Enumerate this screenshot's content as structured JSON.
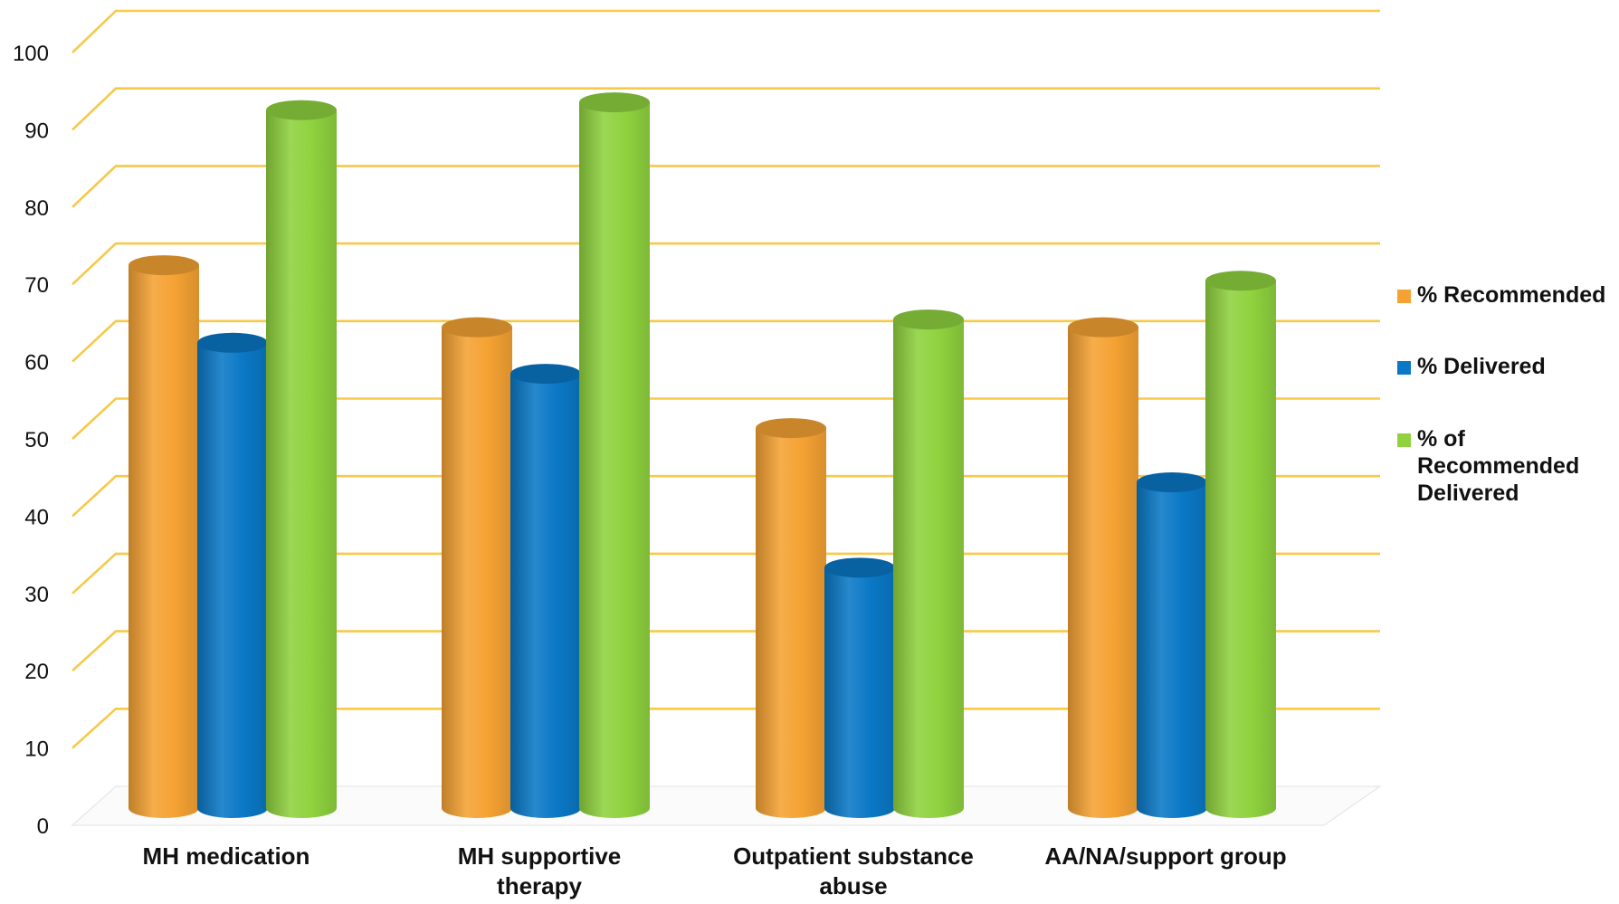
{
  "chart_data": {
    "type": "bar",
    "title": "",
    "xlabel": "",
    "ylabel": "",
    "ylim": [
      0,
      100
    ],
    "yticks": [
      0,
      10,
      20,
      30,
      40,
      50,
      60,
      70,
      80,
      90,
      100
    ],
    "grid": true,
    "legend_position": "right",
    "categories": [
      [
        "MH medication"
      ],
      [
        "MH supportive",
        "therapy"
      ],
      [
        "Outpatient substance",
        "abuse"
      ],
      [
        "AA/NA/support group"
      ]
    ],
    "series": [
      {
        "name": "% Recommended",
        "legend_lines": [
          "% Recommended"
        ],
        "color": "#f5a233",
        "values": [
          70,
          62,
          49,
          62
        ]
      },
      {
        "name": "% Delivered",
        "legend_lines": [
          "% Delivered"
        ],
        "color": "#0a78c6",
        "values": [
          60,
          56,
          31,
          42
        ]
      },
      {
        "name": "% of Recommended Delivered",
        "legend_lines": [
          "% of",
          "Recommended",
          "Delivered"
        ],
        "color": "#8fd23e",
        "values": [
          90,
          91,
          63,
          68
        ]
      }
    ]
  }
}
